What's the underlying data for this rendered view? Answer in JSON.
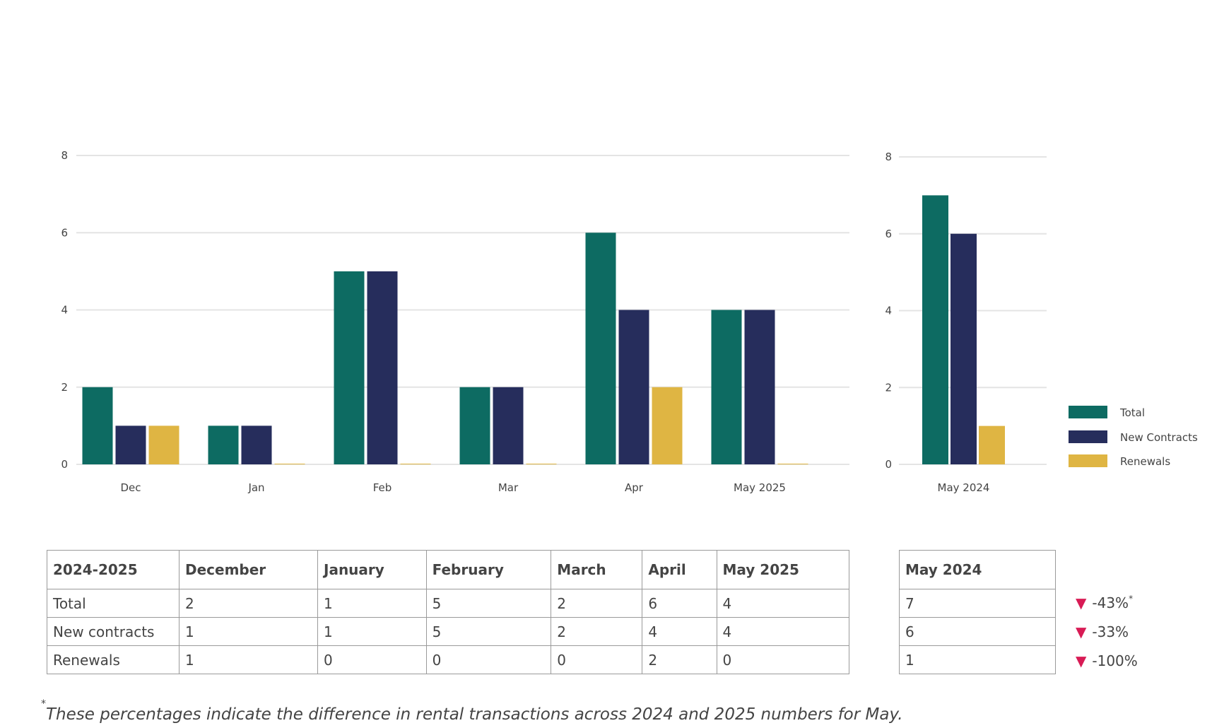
{
  "colors": {
    "total": "#0d6b62",
    "new": "#262d5c",
    "renewals": "#dfb543",
    "down": "#d81b55",
    "grid": "#e4e4e4"
  },
  "chart_data": [
    {
      "type": "bar",
      "categories": [
        "Dec",
        "Jan",
        "Feb",
        "Mar",
        "Apr",
        "May 2025"
      ],
      "series": [
        {
          "name": "Total",
          "values": [
            2,
            1,
            5,
            2,
            6,
            4
          ]
        },
        {
          "name": "New Contracts",
          "values": [
            1,
            1,
            5,
            2,
            4,
            4
          ]
        },
        {
          "name": "Renewals",
          "values": [
            1,
            0,
            0,
            0,
            2,
            0
          ]
        }
      ],
      "yticks": [
        0,
        2,
        4,
        6,
        8
      ],
      "ylim": [
        0,
        8
      ],
      "grid": true
    },
    {
      "type": "bar",
      "categories": [
        "May 2024"
      ],
      "series": [
        {
          "name": "Total",
          "values": [
            7
          ]
        },
        {
          "name": "New Contracts",
          "values": [
            6
          ]
        },
        {
          "name": "Renewals",
          "values": [
            1
          ]
        }
      ],
      "yticks": [
        0,
        2,
        4,
        6,
        8
      ],
      "ylim": [
        0,
        8
      ],
      "grid": true,
      "legend": "right"
    }
  ],
  "legend": [
    "Total",
    "New Contracts",
    "Renewals"
  ],
  "table": {
    "headers": [
      "2024-2025",
      "December",
      "January",
      "February",
      "March",
      "April",
      "May 2025"
    ],
    "rows": [
      [
        "Total",
        "2",
        "1",
        "5",
        "2",
        "6",
        "4"
      ],
      [
        "New contracts",
        "1",
        "1",
        "5",
        "2",
        "4",
        "4"
      ],
      [
        "Renewals",
        "1",
        "0",
        "0",
        "0",
        "2",
        "0"
      ]
    ]
  },
  "side_table": {
    "header": "May 2024",
    "rows": [
      "7",
      "6",
      "1"
    ]
  },
  "changes": [
    {
      "value": "-43%",
      "marker": "*"
    },
    {
      "value": "-33%",
      "marker": ""
    },
    {
      "value": "-100%",
      "marker": ""
    }
  ],
  "footnote": {
    "marker": "*",
    "text": "These percentages indicate the difference in rental transactions across 2024 and 2025 numbers for May."
  }
}
